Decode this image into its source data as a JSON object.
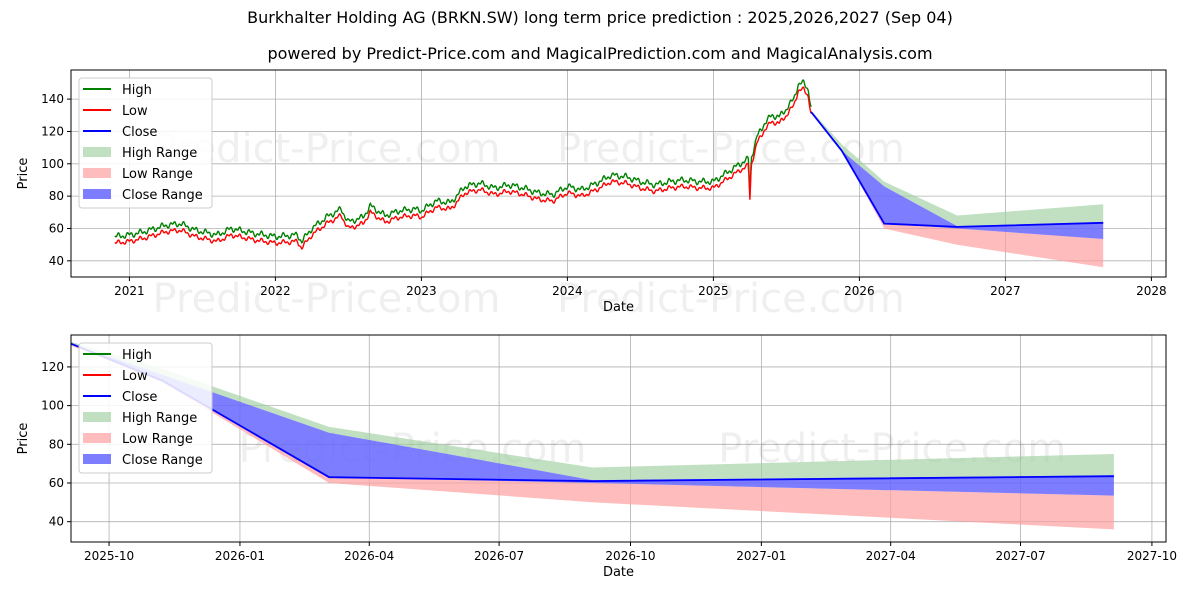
{
  "header": {
    "title": "Burkhalter Holding AG (BRKN.SW) long term price prediction : 2025,2026,2027 (Sep 04)",
    "subtitle": "powered by Predict-Price.com and MagicalPrediction.com and MagicalAnalysis.com"
  },
  "watermark": "Predict-Price.com",
  "colors": {
    "high": "#008000",
    "low": "#ff0000",
    "close": "#0000ff",
    "high_range": "#9fd09f",
    "low_range": "#ffa0a0",
    "close_range": "#6666ff",
    "grid": "#b0b0b0"
  },
  "chart_data": [
    {
      "type": "line",
      "title": "Burkhalter Holding AG (BRKN.SW) long term price prediction : 2025,2026,2027 (Sep 04)",
      "xlabel": "Date",
      "ylabel": "Price",
      "xlim": [
        2020.6,
        2028.1
      ],
      "ylim": [
        30,
        158
      ],
      "xticks": [
        2021,
        2022,
        2023,
        2024,
        2025,
        2026,
        2027,
        2028
      ],
      "xtick_labels": [
        "2021",
        "2022",
        "2023",
        "2024",
        "2025",
        "2026",
        "2027",
        "2028"
      ],
      "yticks": [
        40,
        60,
        80,
        100,
        120,
        140
      ],
      "legend": [
        "High",
        "Low",
        "Close",
        "High Range",
        "Low Range",
        "Close Range"
      ],
      "legend_position": "upper-left",
      "grid": true,
      "history": {
        "x": [
          2020.9,
          2021.0,
          2021.1,
          2021.25,
          2021.35,
          2021.45,
          2021.6,
          2021.7,
          2021.85,
          2022.0,
          2022.15,
          2022.18,
          2022.25,
          2022.35,
          2022.45,
          2022.5,
          2022.6,
          2022.65,
          2022.75,
          2022.85,
          2022.95,
          2023.0,
          2023.1,
          2023.2,
          2023.3,
          2023.4,
          2023.5,
          2023.6,
          2023.7,
          2023.8,
          2023.9,
          2024.0,
          2024.1,
          2024.2,
          2024.3,
          2024.4,
          2024.5,
          2024.6,
          2024.7,
          2024.8,
          2024.9,
          2025.0,
          2025.1,
          2025.2,
          2025.24,
          2025.25,
          2025.26,
          2025.3,
          2025.35,
          2025.4,
          2025.45,
          2025.5,
          2025.55,
          2025.58,
          2025.62,
          2025.65,
          2025.67
        ],
        "close": [
          53,
          54,
          56,
          60,
          61,
          57,
          54,
          58,
          55,
          53,
          54,
          50,
          58,
          65,
          70,
          62,
          65,
          72,
          66,
          69,
          70,
          69,
          75,
          74,
          84,
          86,
          83,
          85,
          83,
          80,
          79,
          84,
          82,
          86,
          91,
          90,
          87,
          85,
          87,
          88,
          87,
          87,
          93,
          99,
          101,
          80,
          102,
          115,
          123,
          128,
          127,
          132,
          138,
          147,
          148,
          144,
          132
        ],
        "high_offset": 2.0,
        "low_offset": 2.0
      },
      "forecast": {
        "x": [
          2025.67,
          2025.88,
          2026.17,
          2026.67,
          2027.67
        ],
        "close": [
          132,
          108,
          63,
          61,
          63.5
        ],
        "high": [
          133,
          112,
          89,
          68,
          75
        ],
        "low": [
          131,
          108,
          60,
          50,
          36
        ],
        "close_range_upper": [
          132,
          108,
          86,
          61.5,
          64
        ],
        "close_range_lower": [
          132,
          108,
          63,
          60,
          53.5
        ]
      }
    },
    {
      "type": "line",
      "xlabel": "Date",
      "ylabel": "Price",
      "xlim": [
        2025.675,
        2027.775
      ],
      "ylim": [
        29.5,
        136.5
      ],
      "xticks": [
        2025.748,
        2025.999,
        2026.247,
        2026.496,
        2026.748,
        2026.999,
        2027.247,
        2027.496,
        2027.748
      ],
      "xtick_labels": [
        "2025-10",
        "2026-01",
        "2026-04",
        "2026-07",
        "2026-10",
        "2027-01",
        "2027-04",
        "2027-07",
        "2027-10"
      ],
      "yticks": [
        40,
        60,
        80,
        100,
        120
      ],
      "legend": [
        "High",
        "Low",
        "Close",
        "High Range",
        "Low Range",
        "Close Range"
      ],
      "legend_position": "upper-left",
      "grid": true,
      "forecast": {
        "x": [
          2025.675,
          2025.85,
          2026.17,
          2026.675,
          2027.675
        ],
        "close": [
          132,
          113,
          63,
          61,
          63.5
        ],
        "high": [
          133,
          119,
          89,
          68,
          75
        ],
        "low": [
          131,
          112,
          60,
          50,
          36
        ],
        "close_range_upper": [
          132,
          116,
          86,
          61.5,
          64
        ],
        "close_range_lower": [
          132,
          113,
          63,
          60,
          53.5
        ]
      }
    }
  ]
}
